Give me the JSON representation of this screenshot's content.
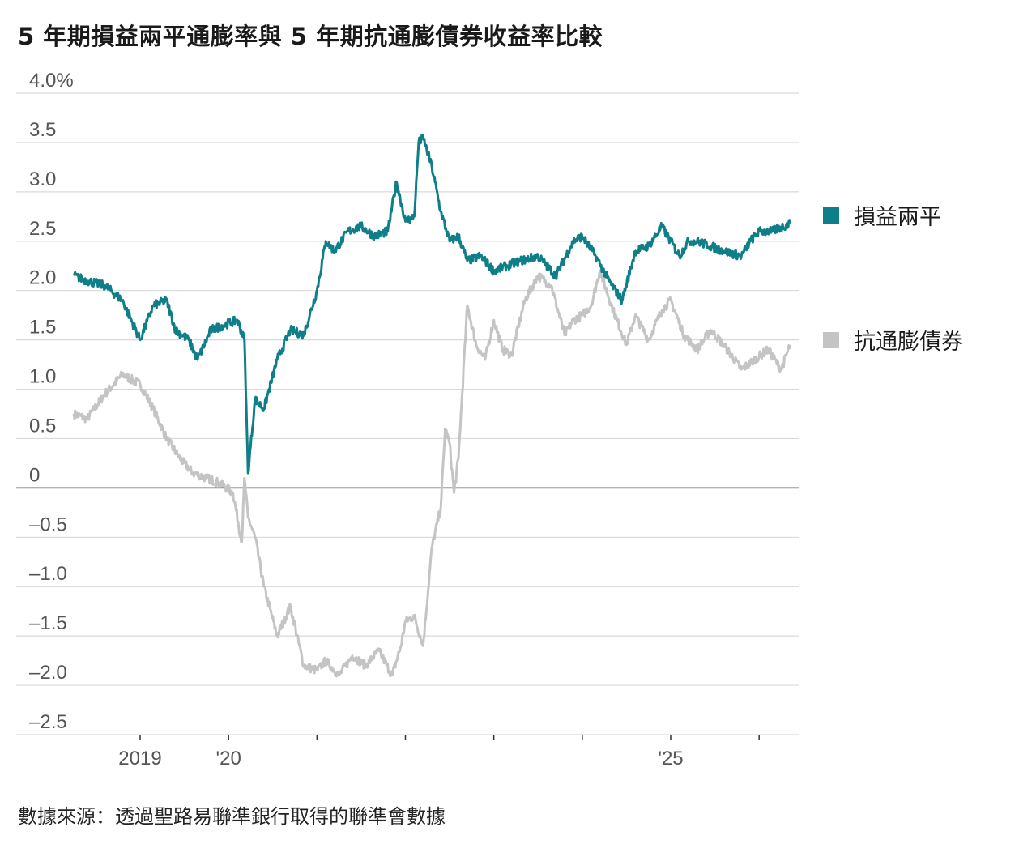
{
  "title": "5 年期損益兩平通膨率與 5 年期抗通膨債券收益率比較",
  "source": "數據來源：透過聖路易聯準銀行取得的聯準會數據",
  "colors": {
    "breakeven": "#0e7e88",
    "tips": "#c4c4c4",
    "grid": "#d9d9d9",
    "zero": "#333333",
    "text": "#555555"
  },
  "chart_data": {
    "type": "line",
    "title": "5 年期損益兩平通膨率與 5 年期抗通膨債券收益率比較",
    "ylabel_unit": "%",
    "ylim": [
      -2.5,
      4.0
    ],
    "y_ticks": [
      4.0,
      3.5,
      3.0,
      2.5,
      2.0,
      1.5,
      1.0,
      0.5,
      0,
      -0.5,
      -1.0,
      -1.5,
      -2.0,
      -2.5
    ],
    "y_tick_labels": [
      "4.0%",
      "3.5",
      "3.0",
      "2.5",
      "2.0",
      "1.5",
      "1.0",
      "0.5",
      "0",
      "–0.5",
      "–1.0",
      "–1.5",
      "–2.0",
      "–2.5"
    ],
    "xlim": [
      2018.3,
      2026.5
    ],
    "x_ticks": [
      2019,
      2020,
      2021,
      2022,
      2023,
      2024,
      2025,
      2026
    ],
    "x_tick_labels": [
      "2019",
      "'20",
      "",
      "",
      "",
      "",
      "'25",
      ""
    ],
    "grid": true,
    "legend_position": "right",
    "series": [
      {
        "name": "損益兩平",
        "color": "#0e7e88",
        "x": [
          2018.25,
          2018.4,
          2018.6,
          2018.8,
          2019.0,
          2019.15,
          2019.3,
          2019.4,
          2019.55,
          2019.65,
          2019.8,
          2019.95,
          2020.1,
          2020.18,
          2020.22,
          2020.3,
          2020.4,
          2020.55,
          2020.7,
          2020.85,
          2021.0,
          2021.1,
          2021.2,
          2021.35,
          2021.5,
          2021.65,
          2021.8,
          2021.9,
          2022.0,
          2022.1,
          2022.15,
          2022.2,
          2022.3,
          2022.4,
          2022.5,
          2022.6,
          2022.7,
          2022.85,
          2023.0,
          2023.15,
          2023.3,
          2023.5,
          2023.7,
          2023.9,
          2024.0,
          2024.15,
          2024.3,
          2024.45,
          2024.6,
          2024.75,
          2024.9,
          2025.0,
          2025.1,
          2025.2,
          2025.3,
          2025.45,
          2025.6,
          2025.8,
          2025.9,
          2026.0,
          2026.15,
          2026.35
        ],
        "y": [
          2.15,
          2.1,
          2.05,
          1.9,
          1.5,
          1.85,
          1.9,
          1.6,
          1.5,
          1.3,
          1.6,
          1.65,
          1.7,
          1.5,
          0.15,
          0.9,
          0.8,
          1.3,
          1.6,
          1.55,
          2.0,
          2.5,
          2.4,
          2.6,
          2.65,
          2.55,
          2.6,
          3.1,
          2.7,
          2.75,
          3.5,
          3.55,
          3.25,
          2.8,
          2.5,
          2.55,
          2.3,
          2.35,
          2.2,
          2.25,
          2.3,
          2.35,
          2.15,
          2.5,
          2.55,
          2.35,
          2.1,
          1.9,
          2.4,
          2.45,
          2.65,
          2.5,
          2.35,
          2.5,
          2.5,
          2.45,
          2.4,
          2.35,
          2.5,
          2.6,
          2.6,
          2.68
        ]
      },
      {
        "name": "抗通膨債券",
        "color": "#c4c4c4",
        "x": [
          2018.25,
          2018.4,
          2018.6,
          2018.8,
          2019.0,
          2019.15,
          2019.3,
          2019.45,
          2019.6,
          2019.75,
          2019.9,
          2020.05,
          2020.15,
          2020.18,
          2020.22,
          2020.3,
          2020.4,
          2020.55,
          2020.7,
          2020.85,
          2021.0,
          2021.1,
          2021.25,
          2021.4,
          2021.55,
          2021.7,
          2021.85,
          2021.95,
          2022.0,
          2022.1,
          2022.2,
          2022.3,
          2022.4,
          2022.45,
          2022.5,
          2022.55,
          2022.6,
          2022.7,
          2022.8,
          2022.9,
          2023.0,
          2023.1,
          2023.2,
          2023.35,
          2023.5,
          2023.65,
          2023.8,
          2023.9,
          2024.0,
          2024.1,
          2024.2,
          2024.35,
          2024.5,
          2024.6,
          2024.75,
          2024.9,
          2025.0,
          2025.15,
          2025.3,
          2025.45,
          2025.6,
          2025.8,
          2025.95,
          2026.1,
          2026.25,
          2026.35
        ],
        "y": [
          0.75,
          0.7,
          0.95,
          1.15,
          1.05,
          0.8,
          0.5,
          0.3,
          0.15,
          0.1,
          0.05,
          -0.05,
          -0.55,
          0.1,
          -0.3,
          -0.5,
          -1.0,
          -1.5,
          -1.2,
          -1.8,
          -1.85,
          -1.75,
          -1.9,
          -1.7,
          -1.8,
          -1.65,
          -1.9,
          -1.6,
          -1.35,
          -1.3,
          -1.6,
          -0.6,
          -0.2,
          0.6,
          0.45,
          -0.05,
          0.3,
          1.85,
          1.45,
          1.3,
          1.7,
          1.4,
          1.35,
          1.9,
          2.15,
          2.05,
          1.55,
          1.7,
          1.75,
          1.85,
          2.2,
          1.8,
          1.45,
          1.75,
          1.5,
          1.8,
          1.9,
          1.55,
          1.4,
          1.6,
          1.45,
          1.2,
          1.3,
          1.4,
          1.2,
          1.45
        ]
      }
    ]
  }
}
